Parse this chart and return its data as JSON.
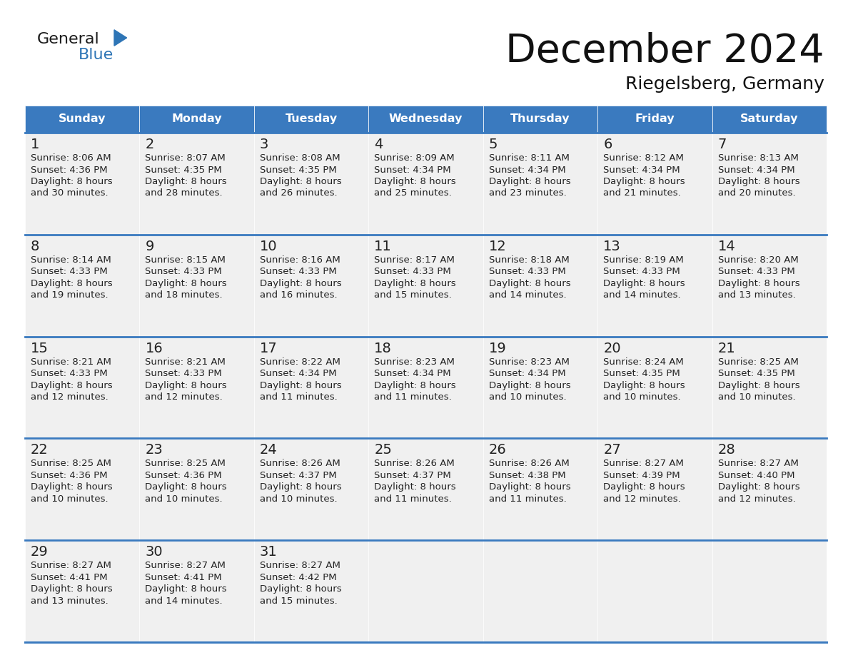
{
  "title": "December 2024",
  "subtitle": "Riegelsberg, Germany",
  "header_color": "#3a7abf",
  "header_text_color": "#FFFFFF",
  "day_names": [
    "Sunday",
    "Monday",
    "Tuesday",
    "Wednesday",
    "Thursday",
    "Friday",
    "Saturday"
  ],
  "background_color": "#FFFFFF",
  "cell_bg_color": "#f0f0f0",
  "cell_border_color": "#3a7abf",
  "date_text_color": "#222222",
  "info_text_color": "#222222",
  "logo_color": "#2E75B6",
  "weeks": [
    [
      {
        "day": 1,
        "sunrise": "8:06 AM",
        "sunset": "4:36 PM",
        "daylight_a": "8 hours",
        "daylight_b": "and 30 minutes."
      },
      {
        "day": 2,
        "sunrise": "8:07 AM",
        "sunset": "4:35 PM",
        "daylight_a": "8 hours",
        "daylight_b": "and 28 minutes."
      },
      {
        "day": 3,
        "sunrise": "8:08 AM",
        "sunset": "4:35 PM",
        "daylight_a": "8 hours",
        "daylight_b": "and 26 minutes."
      },
      {
        "day": 4,
        "sunrise": "8:09 AM",
        "sunset": "4:34 PM",
        "daylight_a": "8 hours",
        "daylight_b": "and 25 minutes."
      },
      {
        "day": 5,
        "sunrise": "8:11 AM",
        "sunset": "4:34 PM",
        "daylight_a": "8 hours",
        "daylight_b": "and 23 minutes."
      },
      {
        "day": 6,
        "sunrise": "8:12 AM",
        "sunset": "4:34 PM",
        "daylight_a": "8 hours",
        "daylight_b": "and 21 minutes."
      },
      {
        "day": 7,
        "sunrise": "8:13 AM",
        "sunset": "4:34 PM",
        "daylight_a": "8 hours",
        "daylight_b": "and 20 minutes."
      }
    ],
    [
      {
        "day": 8,
        "sunrise": "8:14 AM",
        "sunset": "4:33 PM",
        "daylight_a": "8 hours",
        "daylight_b": "and 19 minutes."
      },
      {
        "day": 9,
        "sunrise": "8:15 AM",
        "sunset": "4:33 PM",
        "daylight_a": "8 hours",
        "daylight_b": "and 18 minutes."
      },
      {
        "day": 10,
        "sunrise": "8:16 AM",
        "sunset": "4:33 PM",
        "daylight_a": "8 hours",
        "daylight_b": "and 16 minutes."
      },
      {
        "day": 11,
        "sunrise": "8:17 AM",
        "sunset": "4:33 PM",
        "daylight_a": "8 hours",
        "daylight_b": "and 15 minutes."
      },
      {
        "day": 12,
        "sunrise": "8:18 AM",
        "sunset": "4:33 PM",
        "daylight_a": "8 hours",
        "daylight_b": "and 14 minutes."
      },
      {
        "day": 13,
        "sunrise": "8:19 AM",
        "sunset": "4:33 PM",
        "daylight_a": "8 hours",
        "daylight_b": "and 14 minutes."
      },
      {
        "day": 14,
        "sunrise": "8:20 AM",
        "sunset": "4:33 PM",
        "daylight_a": "8 hours",
        "daylight_b": "and 13 minutes."
      }
    ],
    [
      {
        "day": 15,
        "sunrise": "8:21 AM",
        "sunset": "4:33 PM",
        "daylight_a": "8 hours",
        "daylight_b": "and 12 minutes."
      },
      {
        "day": 16,
        "sunrise": "8:21 AM",
        "sunset": "4:33 PM",
        "daylight_a": "8 hours",
        "daylight_b": "and 12 minutes."
      },
      {
        "day": 17,
        "sunrise": "8:22 AM",
        "sunset": "4:34 PM",
        "daylight_a": "8 hours",
        "daylight_b": "and 11 minutes."
      },
      {
        "day": 18,
        "sunrise": "8:23 AM",
        "sunset": "4:34 PM",
        "daylight_a": "8 hours",
        "daylight_b": "and 11 minutes."
      },
      {
        "day": 19,
        "sunrise": "8:23 AM",
        "sunset": "4:34 PM",
        "daylight_a": "8 hours",
        "daylight_b": "and 10 minutes."
      },
      {
        "day": 20,
        "sunrise": "8:24 AM",
        "sunset": "4:35 PM",
        "daylight_a": "8 hours",
        "daylight_b": "and 10 minutes."
      },
      {
        "day": 21,
        "sunrise": "8:25 AM",
        "sunset": "4:35 PM",
        "daylight_a": "8 hours",
        "daylight_b": "and 10 minutes."
      }
    ],
    [
      {
        "day": 22,
        "sunrise": "8:25 AM",
        "sunset": "4:36 PM",
        "daylight_a": "8 hours",
        "daylight_b": "and 10 minutes."
      },
      {
        "day": 23,
        "sunrise": "8:25 AM",
        "sunset": "4:36 PM",
        "daylight_a": "8 hours",
        "daylight_b": "and 10 minutes."
      },
      {
        "day": 24,
        "sunrise": "8:26 AM",
        "sunset": "4:37 PM",
        "daylight_a": "8 hours",
        "daylight_b": "and 10 minutes."
      },
      {
        "day": 25,
        "sunrise": "8:26 AM",
        "sunset": "4:37 PM",
        "daylight_a": "8 hours",
        "daylight_b": "and 11 minutes."
      },
      {
        "day": 26,
        "sunrise": "8:26 AM",
        "sunset": "4:38 PM",
        "daylight_a": "8 hours",
        "daylight_b": "and 11 minutes."
      },
      {
        "day": 27,
        "sunrise": "8:27 AM",
        "sunset": "4:39 PM",
        "daylight_a": "8 hours",
        "daylight_b": "and 12 minutes."
      },
      {
        "day": 28,
        "sunrise": "8:27 AM",
        "sunset": "4:40 PM",
        "daylight_a": "8 hours",
        "daylight_b": "and 12 minutes."
      }
    ],
    [
      {
        "day": 29,
        "sunrise": "8:27 AM",
        "sunset": "4:41 PM",
        "daylight_a": "8 hours",
        "daylight_b": "and 13 minutes."
      },
      {
        "day": 30,
        "sunrise": "8:27 AM",
        "sunset": "4:41 PM",
        "daylight_a": "8 hours",
        "daylight_b": "and 14 minutes."
      },
      {
        "day": 31,
        "sunrise": "8:27 AM",
        "sunset": "4:42 PM",
        "daylight_a": "8 hours",
        "daylight_b": "and 15 minutes."
      },
      null,
      null,
      null,
      null
    ]
  ]
}
